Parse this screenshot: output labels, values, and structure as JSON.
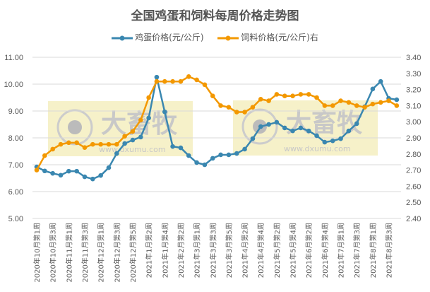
{
  "chart_data": {
    "type": "line",
    "title": "全国鸡蛋和饲料每周价格走势图",
    "x_tick_labels": [
      "2020年10月第1周",
      "2020年10月第3周",
      "2020年11月第1周",
      "2020年11月第3周",
      "2020年12月第1周",
      "2020年12月第3周",
      "2020年12月第5周",
      "2021年1月第2周",
      "2021年1月第4周",
      "2021年2月第2周",
      "2021年3月第1周",
      "2021年3月第3周",
      "2021年3月第5周",
      "2021年4月第2周",
      "2021年4月第4周",
      "2021年5月第2周",
      "2021年5月第4周",
      "2021年6月第2周",
      "2021年6月第4周",
      "2021年7月第1周",
      "2021年7月第3周",
      "2021年8月第1周",
      "2021年8月第3周"
    ],
    "y_left": {
      "min": 5,
      "max": 11,
      "step": 1,
      "tick_labels": [
        "5.00",
        "6.00",
        "7.00",
        "8.00",
        "9.00",
        "10.00",
        "11.00"
      ]
    },
    "y_right": {
      "min": 2.4,
      "max": 3.4,
      "step": 0.1,
      "tick_labels": [
        "2.40",
        "2.50",
        "2.60",
        "2.70",
        "2.80",
        "2.90",
        "3.00",
        "3.10",
        "3.20",
        "3.30",
        "3.40"
      ]
    },
    "grid": true,
    "legend_position": "top",
    "series": [
      {
        "name": "鸡蛋价格(元/公斤)",
        "axis": "left",
        "color": "#3a87b0",
        "values": [
          6.92,
          6.77,
          6.68,
          6.61,
          6.76,
          6.76,
          6.55,
          6.47,
          6.6,
          6.89,
          7.42,
          7.79,
          7.92,
          8.03,
          8.74,
          10.26,
          8.97,
          7.68,
          7.63,
          7.34,
          7.08,
          7.0,
          7.24,
          7.37,
          7.37,
          7.42,
          7.58,
          7.97,
          8.42,
          8.5,
          8.58,
          8.37,
          8.26,
          8.37,
          8.26,
          8.08,
          7.84,
          7.89,
          7.97,
          8.26,
          8.53,
          9.16,
          9.82,
          10.1,
          9.47,
          9.42
        ]
      },
      {
        "name": "饲料价格(元/公斤)右",
        "axis": "right",
        "color": "#f39800",
        "values": [
          2.7,
          2.79,
          2.83,
          2.86,
          2.87,
          2.87,
          2.84,
          2.86,
          2.86,
          2.86,
          2.86,
          2.91,
          2.94,
          3.01,
          3.15,
          3.25,
          3.25,
          3.25,
          3.25,
          3.28,
          3.26,
          3.23,
          3.16,
          3.1,
          3.09,
          3.06,
          3.06,
          3.09,
          3.14,
          3.13,
          3.17,
          3.16,
          3.16,
          3.17,
          3.17,
          3.15,
          3.1,
          3.1,
          3.13,
          3.12,
          3.1,
          3.09,
          3.11,
          3.12,
          3.13,
          3.1
        ]
      }
    ]
  },
  "watermark": {
    "text": "大畜牧",
    "url": "www.dxumu.com"
  }
}
